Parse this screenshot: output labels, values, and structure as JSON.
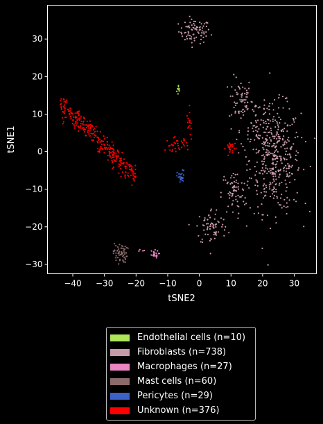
{
  "chart_data": {
    "type": "scatter",
    "xlabel": "tSNE2",
    "ylabel": "tSNE1",
    "xlim": [
      -48,
      37
    ],
    "ylim": [
      -32.5,
      39
    ],
    "xticks": [
      -40,
      -30,
      -20,
      -10,
      0,
      10,
      20,
      30
    ],
    "yticks": [
      -30,
      -20,
      -10,
      0,
      10,
      20,
      30
    ],
    "xtick_labels": [
      "−40",
      "−30",
      "−20",
      "−10",
      "0",
      "10",
      "20",
      "30"
    ],
    "ytick_labels": [
      "−30",
      "−20",
      "−10",
      "0",
      "10",
      "20",
      "30"
    ],
    "grid": false,
    "legend_position": "below",
    "background": "#000000",
    "series": [
      {
        "name": "Endothelial cells (n=10)",
        "color": "#aee85a",
        "clusters": [
          {
            "cx": -6.5,
            "cy": 16.5,
            "sx": 0.3,
            "sy": 0.8,
            "n": 10
          }
        ]
      },
      {
        "name": "Fibroblasts (n=738)",
        "color": "#c79aa8",
        "clusters": [
          {
            "cx": -1.5,
            "cy": 32,
            "sx": 2.5,
            "sy": 1.6,
            "n": 80
          },
          {
            "cx": 13,
            "cy": 14,
            "sx": 1.8,
            "sy": 3,
            "n": 60
          },
          {
            "cx": 24,
            "cy": -2,
            "sx": 4,
            "sy": 7,
            "n": 400
          },
          {
            "cx": 11,
            "cy": -11,
            "sx": 2,
            "sy": 3,
            "n": 70
          },
          {
            "cx": 4,
            "cy": -20,
            "sx": 2.5,
            "sy": 2.5,
            "n": 70
          },
          {
            "cx": 18,
            "cy": 8,
            "sx": 2.5,
            "sy": 4,
            "n": 58
          }
        ]
      },
      {
        "name": "Macrophages (n=27)",
        "color": "#ea86c1",
        "clusters": [
          {
            "cx": -14.5,
            "cy": -27.3,
            "sx": 0.8,
            "sy": 0.5,
            "n": 23
          },
          {
            "cx": -18.5,
            "cy": -26.5,
            "sx": 0.7,
            "sy": 0.4,
            "n": 4
          }
        ]
      },
      {
        "name": "Mast cells (n=60)",
        "color": "#8d6a6a",
        "clusters": [
          {
            "cx": -25,
            "cy": -27,
            "sx": 1.1,
            "sy": 1.3,
            "n": 60
          }
        ]
      },
      {
        "name": "Pericytes (n=29)",
        "color": "#3a62c8",
        "clusters": [
          {
            "cx": -5.8,
            "cy": -6.8,
            "sx": 0.6,
            "sy": 0.9,
            "n": 29
          }
        ]
      },
      {
        "name": "Unknown (n=376)",
        "color": "#ff0000",
        "clusters": [
          {
            "cx": -32,
            "cy": 3,
            "sx": 7,
            "sy": 1.4,
            "n": 300,
            "band_slope": -0.82
          },
          {
            "cx": -7,
            "cy": 2,
            "sx": 1.8,
            "sy": 0.9,
            "n": 30
          },
          {
            "cx": -3,
            "cy": 7,
            "sx": 0.5,
            "sy": 2.2,
            "n": 16
          },
          {
            "cx": 10,
            "cy": 1,
            "sx": 0.8,
            "sy": 0.9,
            "n": 25
          },
          {
            "cx": -9.5,
            "cy": 1.8,
            "sx": 0.4,
            "sy": 0.5,
            "n": 5
          }
        ]
      }
    ]
  }
}
